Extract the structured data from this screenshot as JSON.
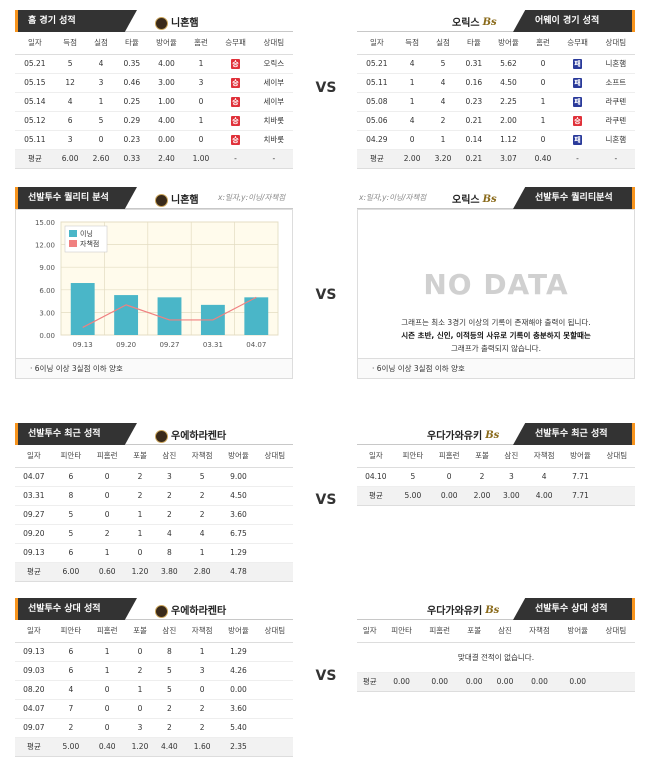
{
  "vs_label": "VS",
  "section1": {
    "left": {
      "tab": "홈 경기 성적",
      "team": "니혼햄",
      "columns": [
        "일자",
        "득점",
        "실점",
        "타율",
        "방어율",
        "홈런",
        "승무패",
        "상대팀"
      ],
      "rows": [
        [
          "05.21",
          "5",
          "4",
          "0.35",
          "4.00",
          "1",
          "승",
          "오릭스"
        ],
        [
          "05.15",
          "12",
          "3",
          "0.46",
          "3.00",
          "3",
          "승",
          "세이부"
        ],
        [
          "05.14",
          "4",
          "1",
          "0.25",
          "1.00",
          "0",
          "승",
          "세이부"
        ],
        [
          "05.12",
          "6",
          "5",
          "0.29",
          "4.00",
          "1",
          "승",
          "치바롯"
        ],
        [
          "05.11",
          "3",
          "0",
          "0.23",
          "0.00",
          "0",
          "승",
          "치바롯"
        ]
      ],
      "avg": [
        "평균",
        "6.00",
        "2.60",
        "0.33",
        "2.40",
        "1.00",
        "-",
        "-"
      ]
    },
    "right": {
      "tab": "어웨이 경기 성적",
      "team": "오릭스",
      "columns": [
        "일자",
        "득점",
        "실점",
        "타율",
        "방어율",
        "홈런",
        "승무패",
        "상대팀"
      ],
      "rows": [
        [
          "05.21",
          "4",
          "5",
          "0.31",
          "5.62",
          "0",
          "패",
          "니혼햄"
        ],
        [
          "05.11",
          "1",
          "4",
          "0.16",
          "4.50",
          "0",
          "패",
          "소프트"
        ],
        [
          "05.08",
          "1",
          "4",
          "0.23",
          "2.25",
          "1",
          "패",
          "라쿠텐"
        ],
        [
          "05.06",
          "4",
          "2",
          "0.21",
          "2.00",
          "1",
          "승",
          "라쿠텐"
        ],
        [
          "04.29",
          "0",
          "1",
          "0.14",
          "1.12",
          "0",
          "패",
          "니혼햄"
        ]
      ],
      "avg": [
        "평균",
        "2.00",
        "3.20",
        "0.21",
        "3.07",
        "0.40",
        "-",
        "-"
      ]
    }
  },
  "section2": {
    "left": {
      "tab": "선발투수 퀄리티 분석",
      "team": "니혼햄",
      "axis_note": "x:일자,y:이닝/자책점",
      "note": "· 6이닝 이상 3실점 이하 양호"
    },
    "right": {
      "tab": "선발투수 퀄리티분석",
      "team": "오릭스",
      "axis_note": "x:일자,y:이닝/자책점",
      "nodata_title": "NO DATA",
      "nodata_line1": "그래프는 최소 3경기 이상의 기록이 존재해야 출력이 됩니다.",
      "nodata_line2": "시즌 초반, 신인, 이적등의 사유로 기록이 충분하지 못할때는",
      "nodata_line3": "그래프가 출력되지 않습니다.",
      "note": "· 6이닝 이상 3실점 이하 양호"
    }
  },
  "chart_data": {
    "type": "bar",
    "categories": [
      "09.13",
      "09.20",
      "09.27",
      "03.31",
      "04.07"
    ],
    "series": [
      {
        "name": "이닝",
        "type": "bar",
        "color": "#4ab6c8",
        "values": [
          6.9,
          5.3,
          5.0,
          4.0,
          5.0
        ]
      },
      {
        "name": "자책점",
        "type": "line",
        "color": "#f08080",
        "values": [
          1.0,
          4.0,
          2.0,
          2.0,
          5.0
        ]
      }
    ],
    "ylim": [
      0,
      15
    ],
    "yticks": [
      "15.00",
      "12.00",
      "9.00",
      "6.00",
      "3.00",
      "0.00"
    ],
    "legend": "top-left",
    "grid": true
  },
  "section3": {
    "left": {
      "tab": "선발투수 최근 성적",
      "team": "우에하라켄타",
      "columns": [
        "일자",
        "피안타",
        "피홈런",
        "포볼",
        "삼진",
        "자책점",
        "방어율",
        "상대팀"
      ],
      "rows": [
        [
          "04.07",
          "6",
          "0",
          "2",
          "3",
          "5",
          "9.00",
          ""
        ],
        [
          "03.31",
          "8",
          "0",
          "2",
          "2",
          "2",
          "4.50",
          ""
        ],
        [
          "09.27",
          "5",
          "0",
          "1",
          "2",
          "2",
          "3.60",
          ""
        ],
        [
          "09.20",
          "5",
          "2",
          "1",
          "4",
          "4",
          "6.75",
          ""
        ],
        [
          "09.13",
          "6",
          "1",
          "0",
          "8",
          "1",
          "1.29",
          ""
        ]
      ],
      "avg": [
        "평균",
        "6.00",
        "0.60",
        "1.20",
        "3.80",
        "2.80",
        "4.78",
        ""
      ]
    },
    "right": {
      "tab": "선발투수 최근 성적",
      "team": "우다가와유키",
      "columns": [
        "일자",
        "피안타",
        "피홈런",
        "포볼",
        "삼진",
        "자책점",
        "방어율",
        "상대팀"
      ],
      "rows": [
        [
          "04.10",
          "5",
          "0",
          "2",
          "3",
          "4",
          "7.71",
          ""
        ]
      ],
      "avg": [
        "평균",
        "5.00",
        "0.00",
        "2.00",
        "3.00",
        "4.00",
        "7.71",
        ""
      ]
    }
  },
  "section4": {
    "left": {
      "tab": "선발투수 상대 성적",
      "team": "우에하라켄타",
      "columns": [
        "일자",
        "피안타",
        "피홈런",
        "포볼",
        "삼진",
        "자책점",
        "방어율",
        "상대팀"
      ],
      "rows": [
        [
          "09.13",
          "6",
          "1",
          "0",
          "8",
          "1",
          "1.29",
          ""
        ],
        [
          "09.03",
          "6",
          "1",
          "2",
          "5",
          "3",
          "4.26",
          ""
        ],
        [
          "08.20",
          "4",
          "0",
          "1",
          "5",
          "0",
          "0.00",
          ""
        ],
        [
          "04.07",
          "7",
          "0",
          "0",
          "2",
          "2",
          "3.60",
          ""
        ],
        [
          "09.07",
          "2",
          "0",
          "3",
          "2",
          "2",
          "5.40",
          ""
        ]
      ],
      "avg": [
        "평균",
        "5.00",
        "0.40",
        "1.20",
        "4.40",
        "1.60",
        "2.35",
        ""
      ]
    },
    "right": {
      "tab": "선발투수 상대 성적",
      "team": "우다가와유키",
      "columns": [
        "일자",
        "피안타",
        "피홈런",
        "포볼",
        "삼진",
        "자책점",
        "방어율",
        "상대팀"
      ],
      "message": "맞대결 전적이 없습니다.",
      "avg": [
        "평균",
        "0.00",
        "0.00",
        "0.00",
        "0.00",
        "0.00",
        "0.00",
        ""
      ]
    }
  }
}
